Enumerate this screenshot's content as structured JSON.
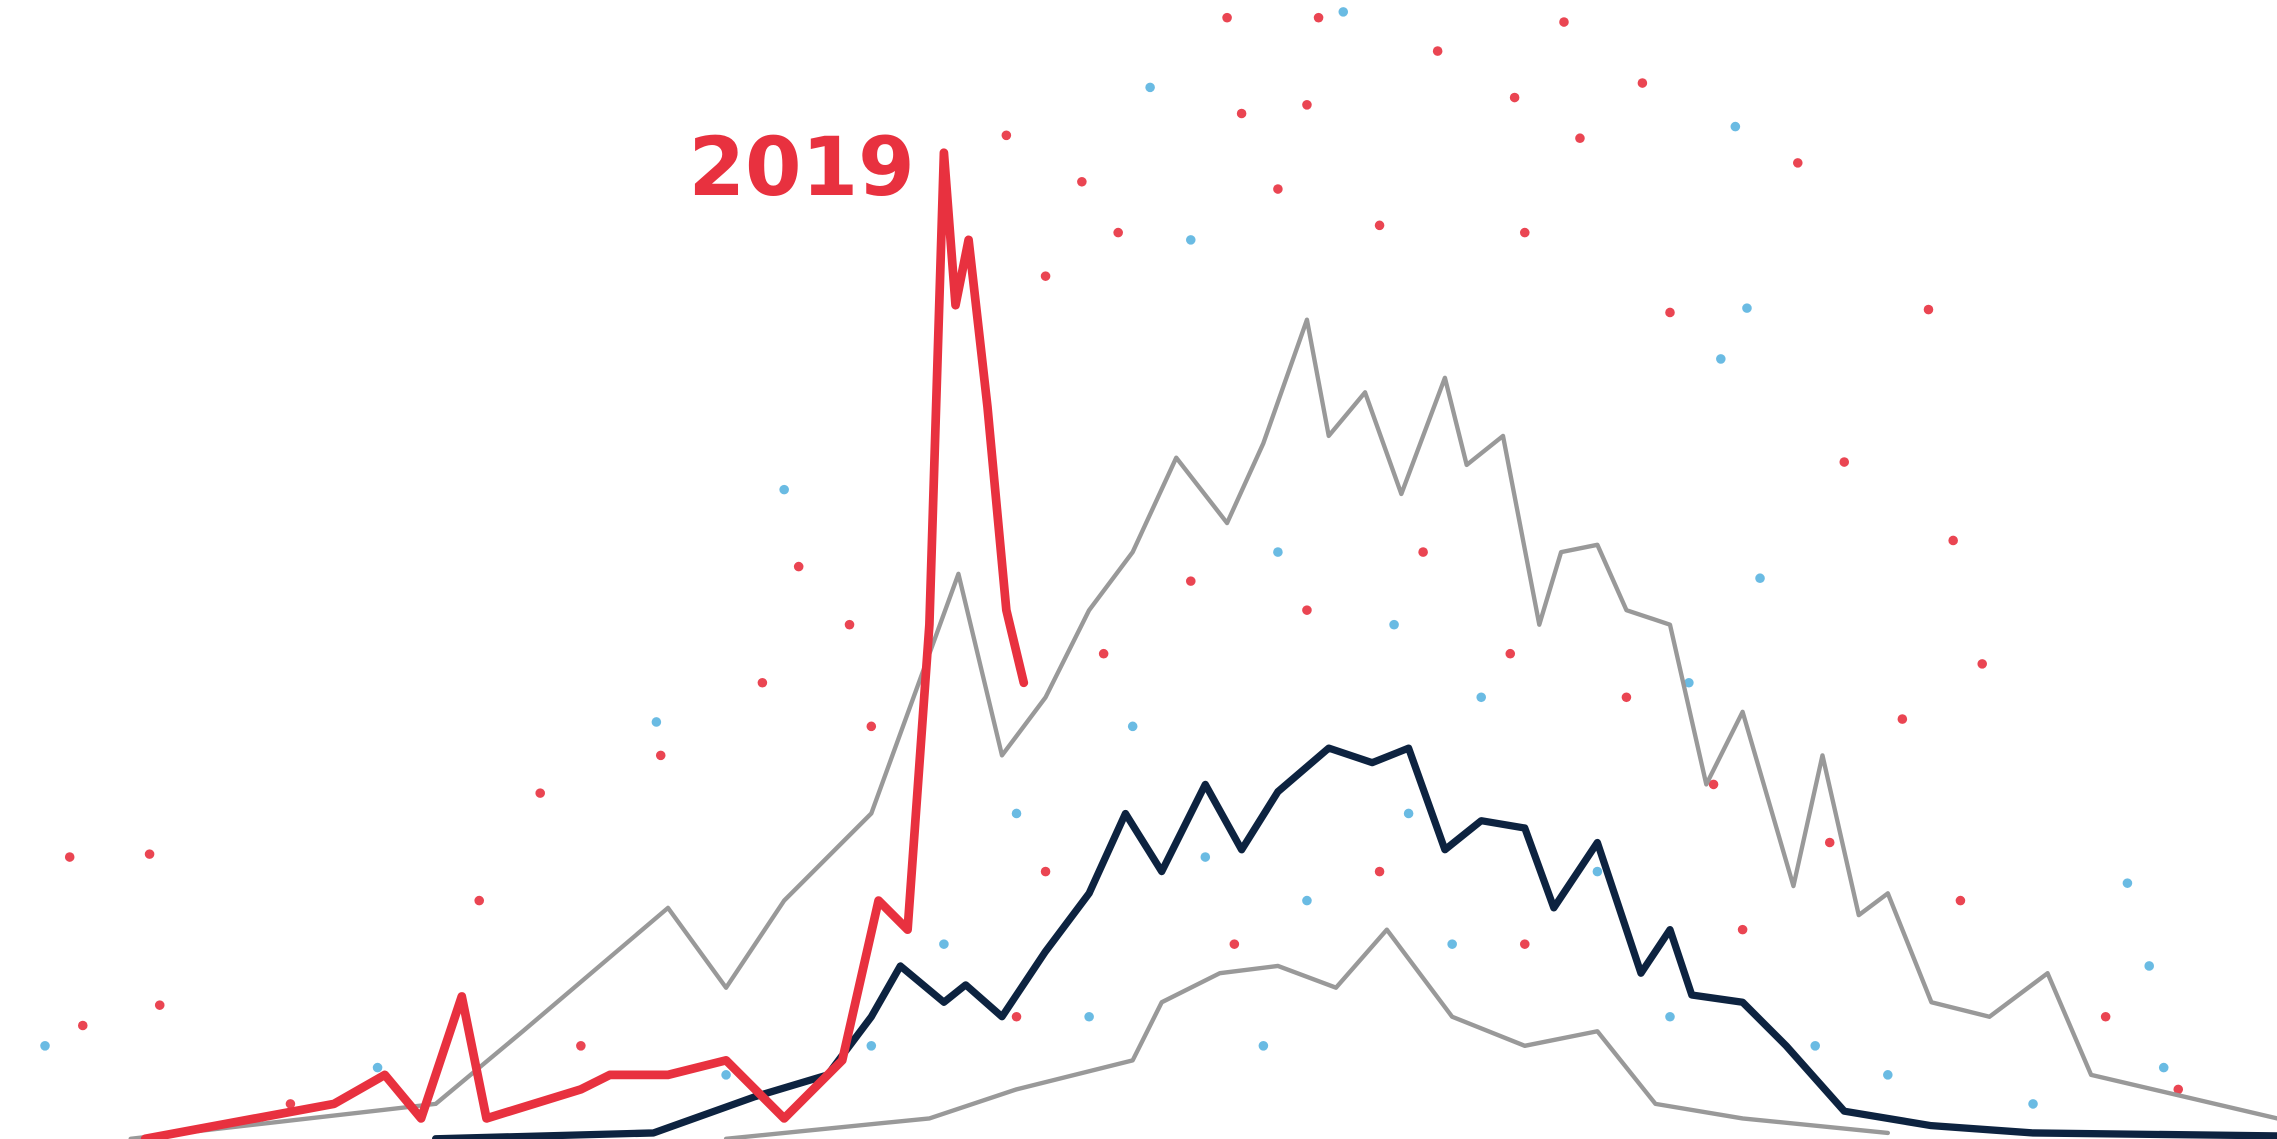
{
  "chart_data": {
    "type": "line",
    "xlim": [
      0,
      1568
    ],
    "ylim": [
      0,
      784
    ],
    "scatter": [
      {
        "color": "#e8313f",
        "x": [
          48,
          103,
          845,
          908,
          1077,
          990,
          1043,
          1131,
          855,
          900,
          1088,
          1238,
          745,
          880,
          693,
          720,
          770,
          950,
          1050,
          1150,
          1328,
          1270,
          1345,
          1365,
          1310,
          550,
          585,
          525,
          372,
          455,
          330,
          600,
          760,
          820,
          900,
          980,
          1040,
          1120,
          1180,
          1260,
          1350,
          1450,
          1500,
          720,
          850,
          950,
          1050,
          1200,
          700,
          400,
          200,
          110,
          57
        ],
        "values": [
          194,
          196,
          772,
          772,
          769,
          749,
          717,
          727,
          706,
          712,
          689,
          672,
          659,
          654,
          691,
          594,
          624,
          629,
          624,
          569,
          571,
          466,
          412,
          327,
          289,
          394,
          354,
          314,
          238,
          264,
          164,
          284,
          334,
          384,
          364,
          404,
          334,
          304,
          244,
          204,
          164,
          84,
          34,
          184,
          134,
          184,
          134,
          144,
          84,
          64,
          24,
          92,
          78
        ]
      },
      {
        "color": "#5ab4e0",
        "x": [
          925,
          792,
          1195,
          820,
          1203,
          1185,
          540,
          452,
          1212,
          1163,
          880,
          960,
          1020,
          780,
          700,
          830,
          900,
          1000,
          1100,
          1150,
          1250,
          1400,
          1465,
          1480,
          1490,
          600,
          650,
          750,
          31,
          260,
          500,
          1300,
          970,
          870
        ],
        "values": [
          776,
          724,
          697,
          619,
          572,
          537,
          447,
          287,
          386,
          314,
          404,
          354,
          304,
          284,
          224,
          194,
          164,
          134,
          184,
          84,
          64,
          24,
          176,
          119,
          49,
          64,
          134,
          84,
          64,
          49,
          44,
          44,
          224,
          64
        ]
      }
    ],
    "series": [
      {
        "name": "2019",
        "color": "#e8313f",
        "width": 6,
        "x": [
          100,
          230,
          265,
          290,
          318,
          335,
          400,
          420,
          460,
          500,
          540,
          580,
          605,
          625,
          640,
          650,
          658,
          667,
          680,
          693,
          705
        ],
        "values": [
          0,
          24,
          44,
          14,
          98,
          14,
          34,
          44,
          44,
          54,
          14,
          54,
          164,
          144,
          354,
          679,
          574,
          619,
          504,
          364,
          314
        ]
      },
      {
        "color": "#999999",
        "width": 3,
        "x": [
          90,
          300,
          360,
          460,
          500,
          540,
          600,
          640,
          660,
          690,
          720,
          750,
          780,
          810,
          845,
          870,
          900,
          915,
          940,
          965,
          995,
          1010,
          1035,
          1060,
          1075,
          1100,
          1120,
          1150,
          1175,
          1200,
          1235,
          1255,
          1280,
          1300,
          1330,
          1370,
          1410,
          1440,
          1568
        ],
        "values": [
          0,
          24,
          74,
          159,
          104,
          164,
          224,
          334,
          389,
          264,
          304,
          364,
          404,
          469,
          424,
          479,
          564,
          484,
          514,
          444,
          524,
          464,
          484,
          354,
          404,
          409,
          364,
          354,
          244,
          294,
          174,
          264,
          154,
          169,
          94,
          84,
          114,
          44,
          14
        ]
      },
      {
        "color": "#999999",
        "width": 3,
        "x": [
          500,
          640,
          700,
          780,
          800,
          840,
          880,
          920,
          955,
          1000,
          1050,
          1100,
          1140,
          1200,
          1300
        ],
        "values": [
          0,
          14,
          34,
          54,
          94,
          114,
          119,
          104,
          144,
          84,
          64,
          74,
          24,
          14,
          4
        ]
      },
      {
        "color": "#0d2340",
        "width": 5,
        "x": [
          300,
          450,
          520,
          570,
          600,
          620,
          650,
          665,
          690,
          720,
          750,
          775,
          800,
          830,
          855,
          880,
          915,
          945,
          970,
          995,
          1020,
          1050,
          1070,
          1100,
          1130,
          1150,
          1165,
          1200,
          1230,
          1270,
          1330,
          1400,
          1568
        ],
        "values": [
          0,
          4,
          29,
          44,
          84,
          119,
          94,
          106,
          84,
          129,
          169,
          224,
          184,
          244,
          199,
          239,
          269,
          259,
          269,
          199,
          219,
          214,
          159,
          204,
          114,
          144,
          99,
          94,
          64,
          19,
          9,
          4,
          2
        ]
      }
    ]
  }
}
